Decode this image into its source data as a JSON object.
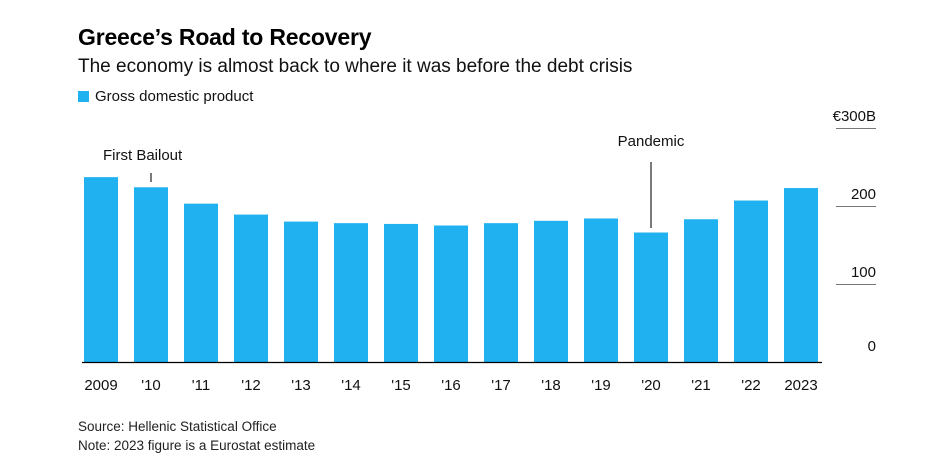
{
  "chart_data": {
    "type": "bar",
    "title": "Greece’s Road to Recovery",
    "subtitle": "The economy is almost back to where it was before the debt crisis",
    "legend": {
      "label": "Gross domestic product",
      "placement": "top-left"
    },
    "categories": [
      "2009",
      "'10",
      "'11",
      "'12",
      "'13",
      "'14",
      "'15",
      "'16",
      "'17",
      "'18",
      "'19",
      "'20",
      "'21",
      "'22",
      "2023"
    ],
    "series": [
      {
        "name": "Gross domestic product",
        "values": [
          237,
          224,
          203,
          189,
          180,
          178,
          177,
          175,
          178,
          181,
          184,
          166,
          183,
          207,
          223
        ]
      }
    ],
    "ylim": [
      0,
      300
    ],
    "yticks": [
      {
        "value": 0,
        "label": "0"
      },
      {
        "value": 100,
        "label": "100"
      },
      {
        "value": 200,
        "label": "200"
      },
      {
        "value": 300,
        "label": "€300B"
      }
    ],
    "annotations": [
      {
        "label": "First Bailout",
        "category": "'10"
      },
      {
        "label": "Pandemic",
        "category": "'20"
      }
    ],
    "colors": {
      "bar": "#1fb1f0",
      "axis": "#000000",
      "tick": "#777777"
    }
  },
  "footer": {
    "source": "Source: Hellenic Statistical Office",
    "note": "Note: 2023 figure is a Eurostat estimate"
  }
}
